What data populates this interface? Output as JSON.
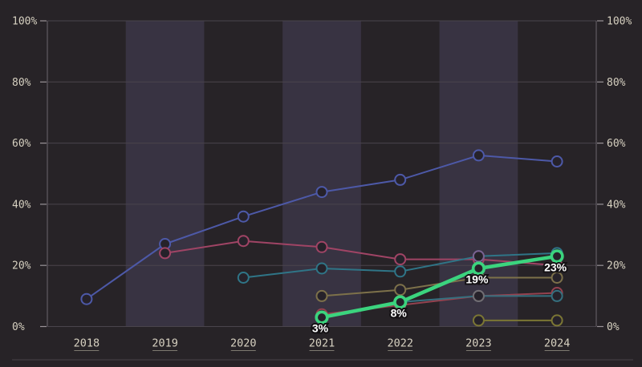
{
  "chart_data": {
    "type": "line",
    "title": "",
    "xlabel": "",
    "ylabel": "",
    "categories": [
      "2018",
      "2019",
      "2020",
      "2021",
      "2022",
      "2023",
      "2024"
    ],
    "y_ticks": [
      "0%",
      "20%",
      "40%",
      "60%",
      "80%",
      "100%"
    ],
    "ylim": [
      0,
      100
    ],
    "grid": "horizontal",
    "legend": "none",
    "dual_y_axis": true,
    "highlight_bands": [
      "2019",
      "2021",
      "2023"
    ],
    "series": [
      {
        "name": "indigo-line",
        "color": "#4d59a8",
        "highlight": false,
        "values": [
          9,
          27,
          36,
          44,
          48,
          56,
          54
        ]
      },
      {
        "name": "rose-line",
        "color": "#a04465",
        "highlight": false,
        "values": [
          null,
          24,
          28,
          26,
          22,
          22,
          20
        ]
      },
      {
        "name": "teal-line",
        "color": "#2f7587",
        "highlight": false,
        "values": [
          null,
          null,
          16,
          19,
          18,
          23,
          24
        ]
      },
      {
        "name": "khaki-line",
        "color": "#7d714a",
        "highlight": false,
        "values": [
          null,
          null,
          null,
          10,
          12,
          16,
          16
        ]
      },
      {
        "name": "red-line",
        "color": "#94424f",
        "highlight": false,
        "values": [
          null,
          null,
          null,
          4,
          7,
          10,
          11
        ]
      },
      {
        "name": "dark-cyan-line",
        "color": "#35707f",
        "highlight": false,
        "values": [
          null,
          null,
          null,
          null,
          8,
          10,
          10
        ]
      },
      {
        "name": "grey-point",
        "color": "#716d72",
        "highlight": false,
        "values": [
          null,
          null,
          null,
          null,
          null,
          10,
          null
        ]
      },
      {
        "name": "violet-point",
        "color": "#7b6292",
        "highlight": false,
        "values": [
          null,
          null,
          null,
          null,
          null,
          23,
          null
        ]
      },
      {
        "name": "olive-line",
        "color": "#7b7634",
        "highlight": false,
        "values": [
          null,
          null,
          null,
          null,
          null,
          2,
          2
        ]
      },
      {
        "name": "green-highlight-line",
        "color": "#3bd47e",
        "highlight": true,
        "values": [
          null,
          null,
          null,
          3,
          8,
          19,
          23
        ],
        "point_labels": [
          null,
          null,
          null,
          "3%",
          "8%",
          "19%",
          "23%"
        ]
      }
    ]
  },
  "colors": {
    "background": "#272327",
    "band": "#383342",
    "gridline": "#4a444c",
    "axis": "#6b646e",
    "tick": "#9a9398",
    "label": "#d6d0c0",
    "underline": "#7e7a70",
    "divider": "#4a4349",
    "marker_fill": "#26222a",
    "point_label_text": "#ffffff",
    "point_label_outline": "#141114"
  }
}
